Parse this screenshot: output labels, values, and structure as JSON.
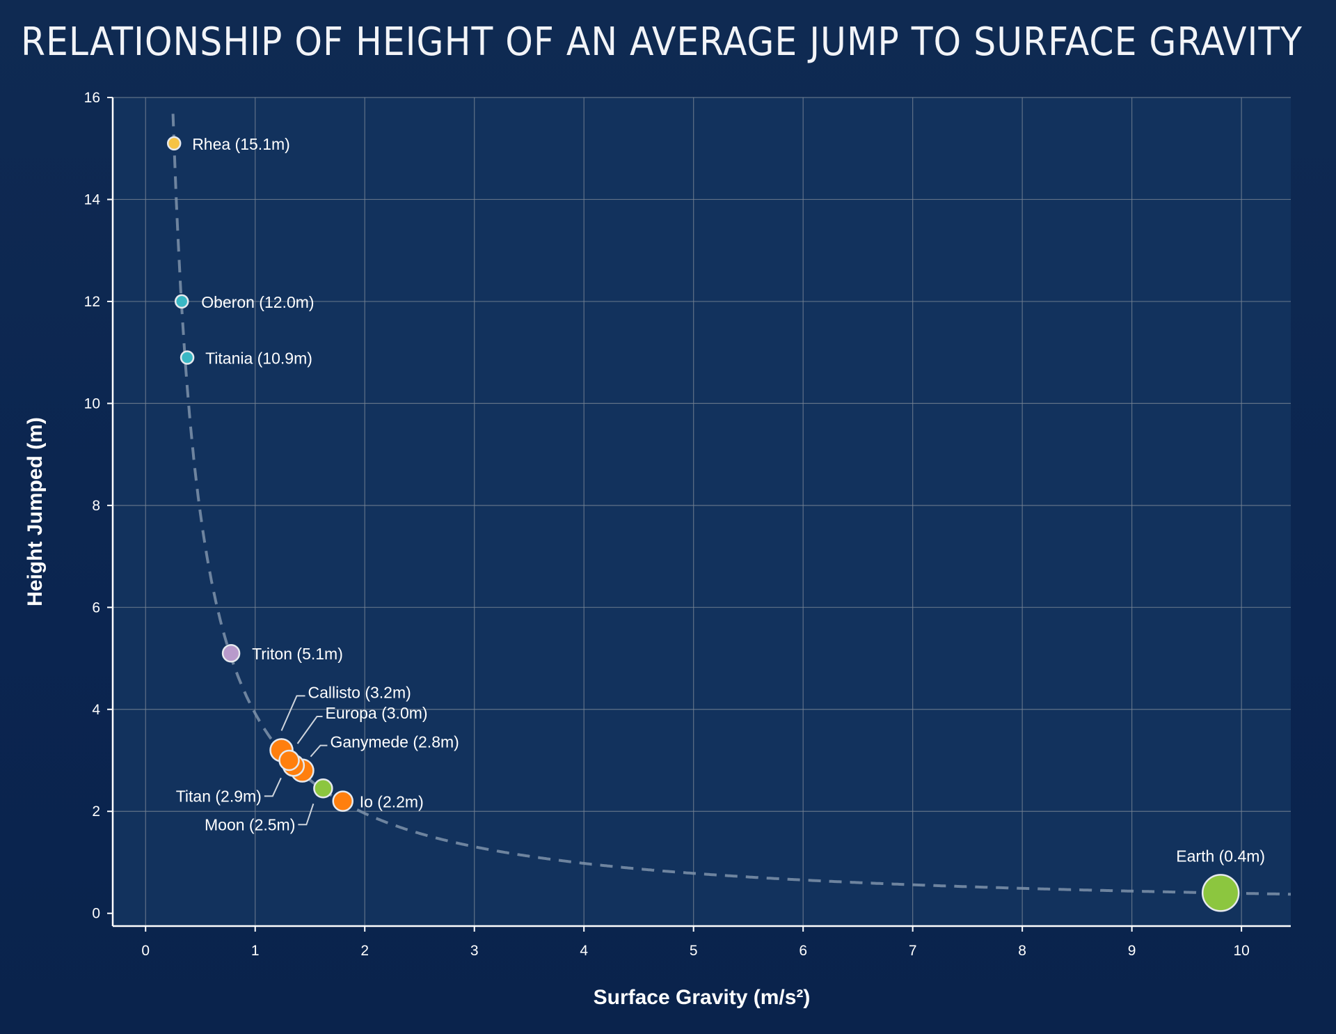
{
  "chart_data": {
    "type": "scatter",
    "title": "RELATIONSHIP OF HEIGHT OF AN AVERAGE JUMP TO SURFACE GRAVITY",
    "xlabel": "Surface Gravity (m/s²)",
    "ylabel": "Height Jumped (m)",
    "xlim": [
      -0.3,
      10.45
    ],
    "ylim": [
      -0.25,
      16
    ],
    "x_ticks": [
      0,
      1,
      2,
      3,
      4,
      5,
      6,
      7,
      8,
      9,
      10
    ],
    "y_ticks": [
      0,
      2,
      4,
      6,
      8,
      10,
      12,
      14,
      16
    ],
    "grid": true,
    "trend_curve": {
      "style": "dashed",
      "formula": "height = 3.92 / gravity"
    },
    "points": [
      {
        "name": "Rhea",
        "label": "Rhea (15.1m)",
        "x": 0.26,
        "y": 15.1,
        "size": 9,
        "color": "#f6c344"
      },
      {
        "name": "Oberon",
        "label": "Oberon (12.0m)",
        "x": 0.33,
        "y": 12.0,
        "size": 9,
        "color": "#3ab7c4"
      },
      {
        "name": "Titania",
        "label": "Titania (10.9m)",
        "x": 0.38,
        "y": 10.9,
        "size": 9,
        "color": "#3ab7c4"
      },
      {
        "name": "Triton",
        "label": "Triton (5.1m)",
        "x": 0.78,
        "y": 5.1,
        "size": 12,
        "color": "#b89acb"
      },
      {
        "name": "Callisto",
        "label": "Callisto (3.2m)",
        "x": 1.24,
        "y": 3.2,
        "size": 16,
        "color": "#ff7f0e"
      },
      {
        "name": "Europa",
        "label": "Europa (3.0m)",
        "x": 1.31,
        "y": 3.0,
        "size": 14,
        "color": "#ff7f0e"
      },
      {
        "name": "Titan",
        "label": "Titan (2.9m)",
        "x": 1.35,
        "y": 2.9,
        "size": 15,
        "color": "#ff7f0e"
      },
      {
        "name": "Ganymede",
        "label": "Ganymede (2.8m)",
        "x": 1.43,
        "y": 2.8,
        "size": 16,
        "color": "#ff7f0e"
      },
      {
        "name": "Moon",
        "label": "Moon (2.5m)",
        "x": 1.62,
        "y": 2.45,
        "size": 13,
        "color": "#8cc63f"
      },
      {
        "name": "Io",
        "label": "Io (2.2m)",
        "x": 1.8,
        "y": 2.2,
        "size": 14,
        "color": "#ff7f0e"
      },
      {
        "name": "Earth",
        "label": "Earth (0.4m)",
        "x": 9.81,
        "y": 0.4,
        "size": 26,
        "color": "#8cc63f"
      }
    ]
  }
}
